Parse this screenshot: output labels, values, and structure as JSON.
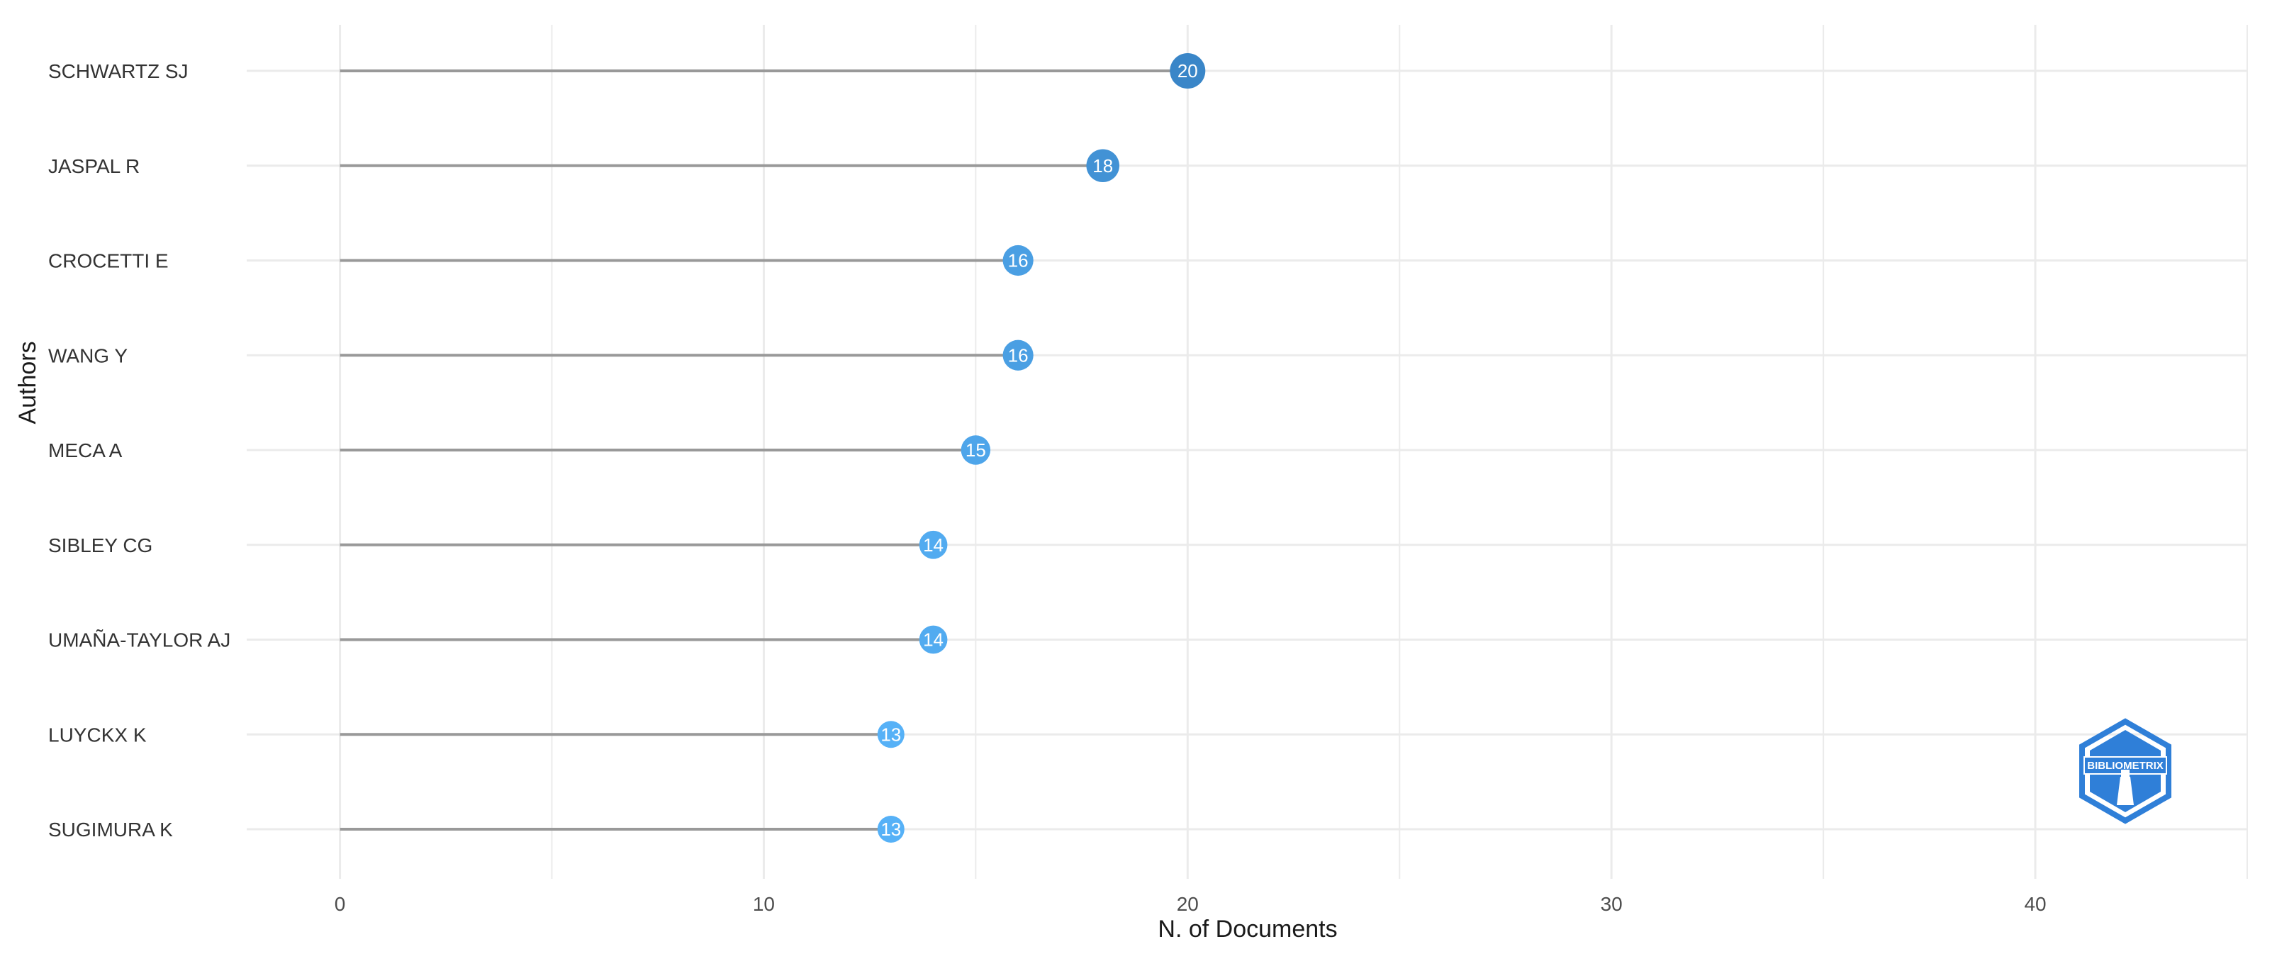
{
  "chart_data": {
    "type": "lollipop",
    "xlabel": "N. of Documents",
    "ylabel": "Authors",
    "xlim": [
      -2.2,
      45
    ],
    "xticks": [
      0,
      10,
      20,
      30,
      40
    ],
    "grid": true,
    "categories": [
      "SCHWARTZ SJ",
      "JASPAL R",
      "CROCETTI E",
      "WANG Y",
      "MECA A",
      "SIBLEY CG",
      "UMAÑA-TAYLOR AJ",
      "LUYCKX K",
      "SUGIMURA K"
    ],
    "values": [
      20,
      18,
      16,
      16,
      15,
      14,
      14,
      13,
      13
    ],
    "colors": {
      "low": "#56B1F7",
      "high": "#3A86C8",
      "segment": "#999999",
      "grid": "#ebebeb"
    }
  },
  "logo": {
    "text": "BIBLIOMETRIX",
    "color": "#2f7fd8"
  }
}
